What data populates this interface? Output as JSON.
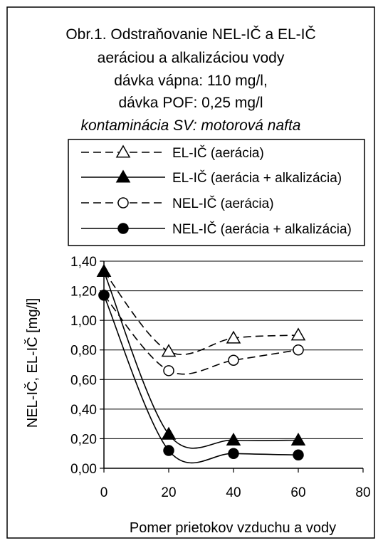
{
  "chart_data": {
    "type": "line",
    "title_lines": [
      "Obr.1. Odstraňovanie NEL-IČ a EL-IČ",
      "aeráciou a alkalizáciou vody",
      "dávka vápna: 110 mg/l,",
      "dávka POF: 0,25 mg/l"
    ],
    "subtitle": "kontaminácia SV: motorová nafta",
    "xlabel": "Pomer prietokov vzduchu a vody",
    "ylabel": "NEL-IČ, EL-IČ [mg/l]",
    "xlim": [
      0,
      80
    ],
    "ylim": [
      0,
      1.4
    ],
    "x_ticks": [
      "0",
      "20",
      "40",
      "60",
      "80"
    ],
    "y_ticks": [
      "0,00",
      "0,20",
      "0,40",
      "0,60",
      "0,80",
      "1,00",
      "1,20",
      "1,40"
    ],
    "grid": "horizontal",
    "legend_position": "top",
    "series": [
      {
        "name": "EL-IČ (aerácia)",
        "line": "dashed",
        "marker": "triangle-open",
        "x": [
          0,
          20,
          40,
          60
        ],
        "y": [
          1.33,
          0.79,
          0.88,
          0.9
        ]
      },
      {
        "name": "EL-IČ (aerácia + alkalizácia)",
        "line": "solid",
        "marker": "triangle-filled",
        "x": [
          0,
          20,
          40,
          60
        ],
        "y": [
          1.33,
          0.23,
          0.19,
          0.19
        ]
      },
      {
        "name": "NEL-IČ (aerácia)",
        "line": "dashed",
        "marker": "circle-open",
        "x": [
          0,
          20,
          40,
          60
        ],
        "y": [
          1.17,
          0.66,
          0.73,
          0.8
        ]
      },
      {
        "name": "NEL-IČ (aerácia + alkalizácia)",
        "line": "solid",
        "marker": "circle-filled",
        "x": [
          0,
          20,
          40,
          60
        ],
        "y": [
          1.17,
          0.12,
          0.1,
          0.09
        ]
      }
    ]
  }
}
